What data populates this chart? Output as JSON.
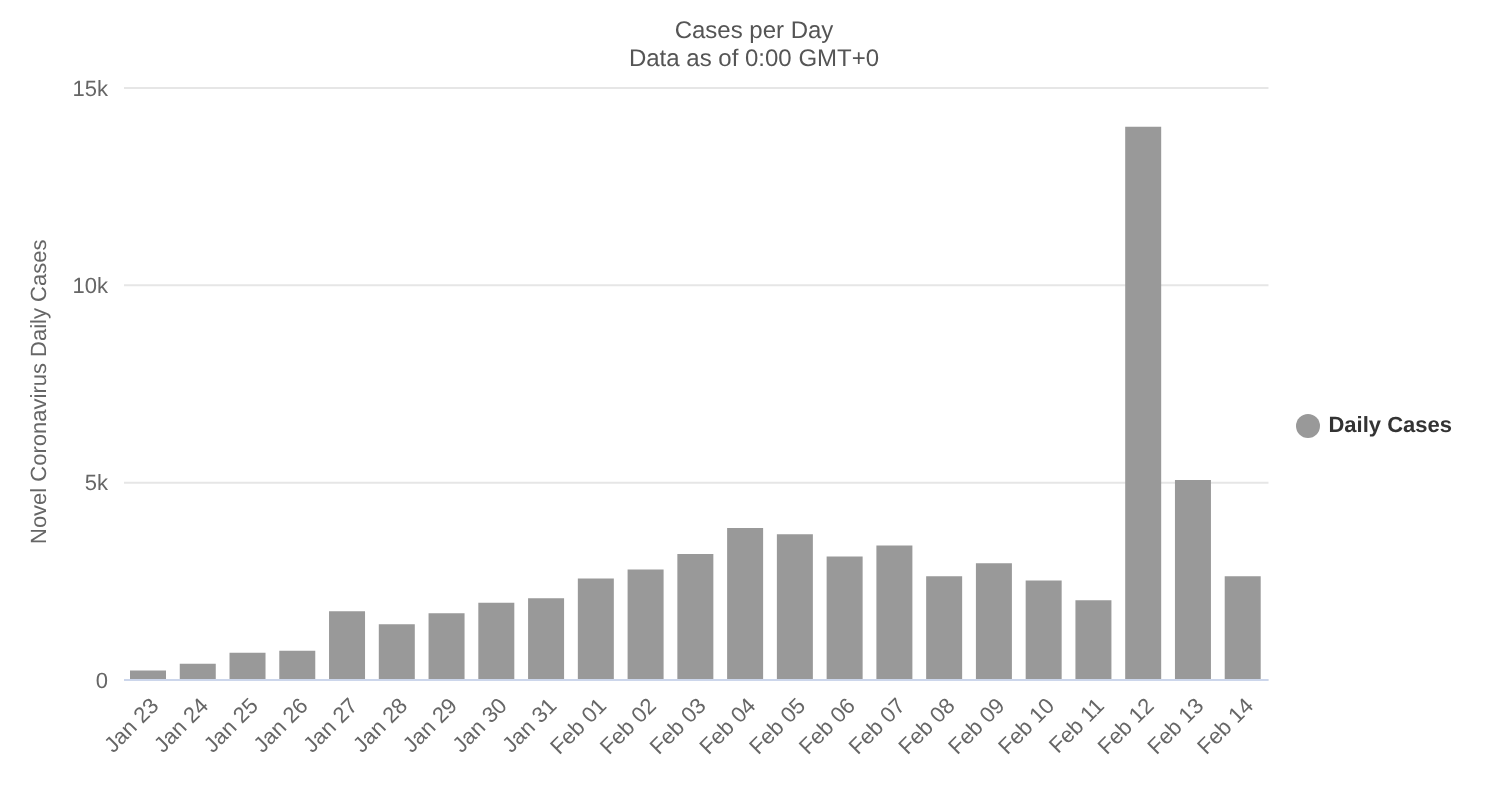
{
  "chart_data": {
    "type": "bar",
    "title": "Cases per Day",
    "subtitle": "Data as of 0:00 GMT+0",
    "ylabel": "Novel Coronavirus Daily Cases",
    "categories": [
      "Jan 23",
      "Jan 24",
      "Jan 25",
      "Jan 26",
      "Jan 27",
      "Jan 28",
      "Jan 29",
      "Jan 30",
      "Jan 31",
      "Feb 01",
      "Feb 02",
      "Feb 03",
      "Feb 04",
      "Feb 05",
      "Feb 06",
      "Feb 07",
      "Feb 08",
      "Feb 09",
      "Feb 10",
      "Feb 11",
      "Feb 12",
      "Feb 13",
      "Feb 14"
    ],
    "series": [
      {
        "name": "Daily Cases",
        "color": "#999999",
        "values": [
          240,
          410,
          690,
          740,
          1740,
          1410,
          1690,
          1960,
          2070,
          2570,
          2800,
          3190,
          3850,
          3690,
          3130,
          3410,
          2630,
          2960,
          2520,
          2020,
          14020,
          5070,
          2630
        ]
      }
    ],
    "ylim": [
      0,
      15000
    ],
    "yticks": [
      0,
      {
        "value": 5000,
        "label": "5k"
      },
      {
        "value": 10000,
        "label": "10k"
      },
      {
        "value": 15000,
        "label": "15k"
      }
    ],
    "grid": "y",
    "legend": "right"
  }
}
